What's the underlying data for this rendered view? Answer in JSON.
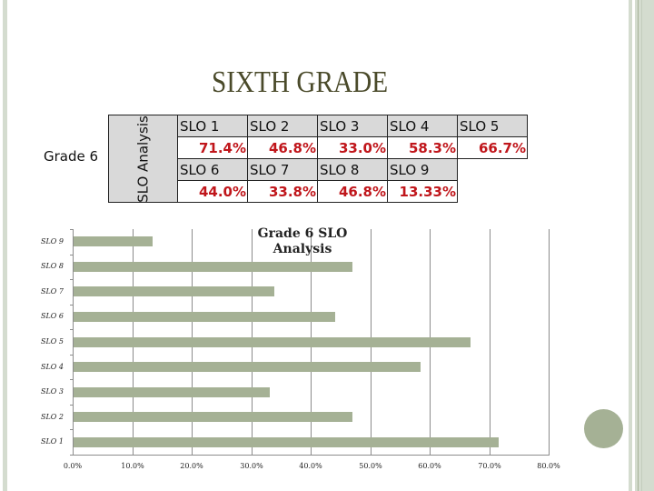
{
  "slide": {
    "title": "SIXTH GRADE",
    "colors": {
      "accent": "#a5b195",
      "border": "#d4dccf",
      "title_text": "#4a4a2a",
      "value_red": "#c0161b",
      "header_gray": "#d9d9d9"
    }
  },
  "table": {
    "row_label": "Grade 6",
    "group_label": "SLO Analysis",
    "rows": [
      {
        "headers": [
          "SLO 1",
          "SLO 2",
          "SLO 3",
          "SLO 4",
          "SLO 5"
        ],
        "values": [
          "71.4%",
          "46.8%",
          "33.0%",
          "58.3%",
          "66.7%"
        ]
      },
      {
        "headers": [
          "SLO 6",
          "SLO 7",
          "SLO 8",
          "SLO 9"
        ],
        "values": [
          "44.0%",
          "33.8%",
          "46.8%",
          "13.33%"
        ]
      }
    ]
  },
  "chart_data": {
    "type": "bar",
    "orientation": "horizontal",
    "title": "Grade 6 SLO Analysis",
    "categories": [
      "SLO 1",
      "SLO 2",
      "SLO 3",
      "SLO 4",
      "SLO 5",
      "SLO 6",
      "SLO 7",
      "SLO 8",
      "SLO 9"
    ],
    "values": [
      71.4,
      46.8,
      33.0,
      58.3,
      66.7,
      44.0,
      33.8,
      46.8,
      13.33
    ],
    "xlabel": "",
    "ylabel": "",
    "xlim": [
      0,
      80
    ],
    "x_ticks": [
      "0.0%",
      "10.0%",
      "20.0%",
      "30.0%",
      "40.0%",
      "50.0%",
      "60.0%",
      "70.0%",
      "80.0%"
    ],
    "grid": "vertical",
    "legend": "none",
    "bar_color": "#a5b195"
  }
}
